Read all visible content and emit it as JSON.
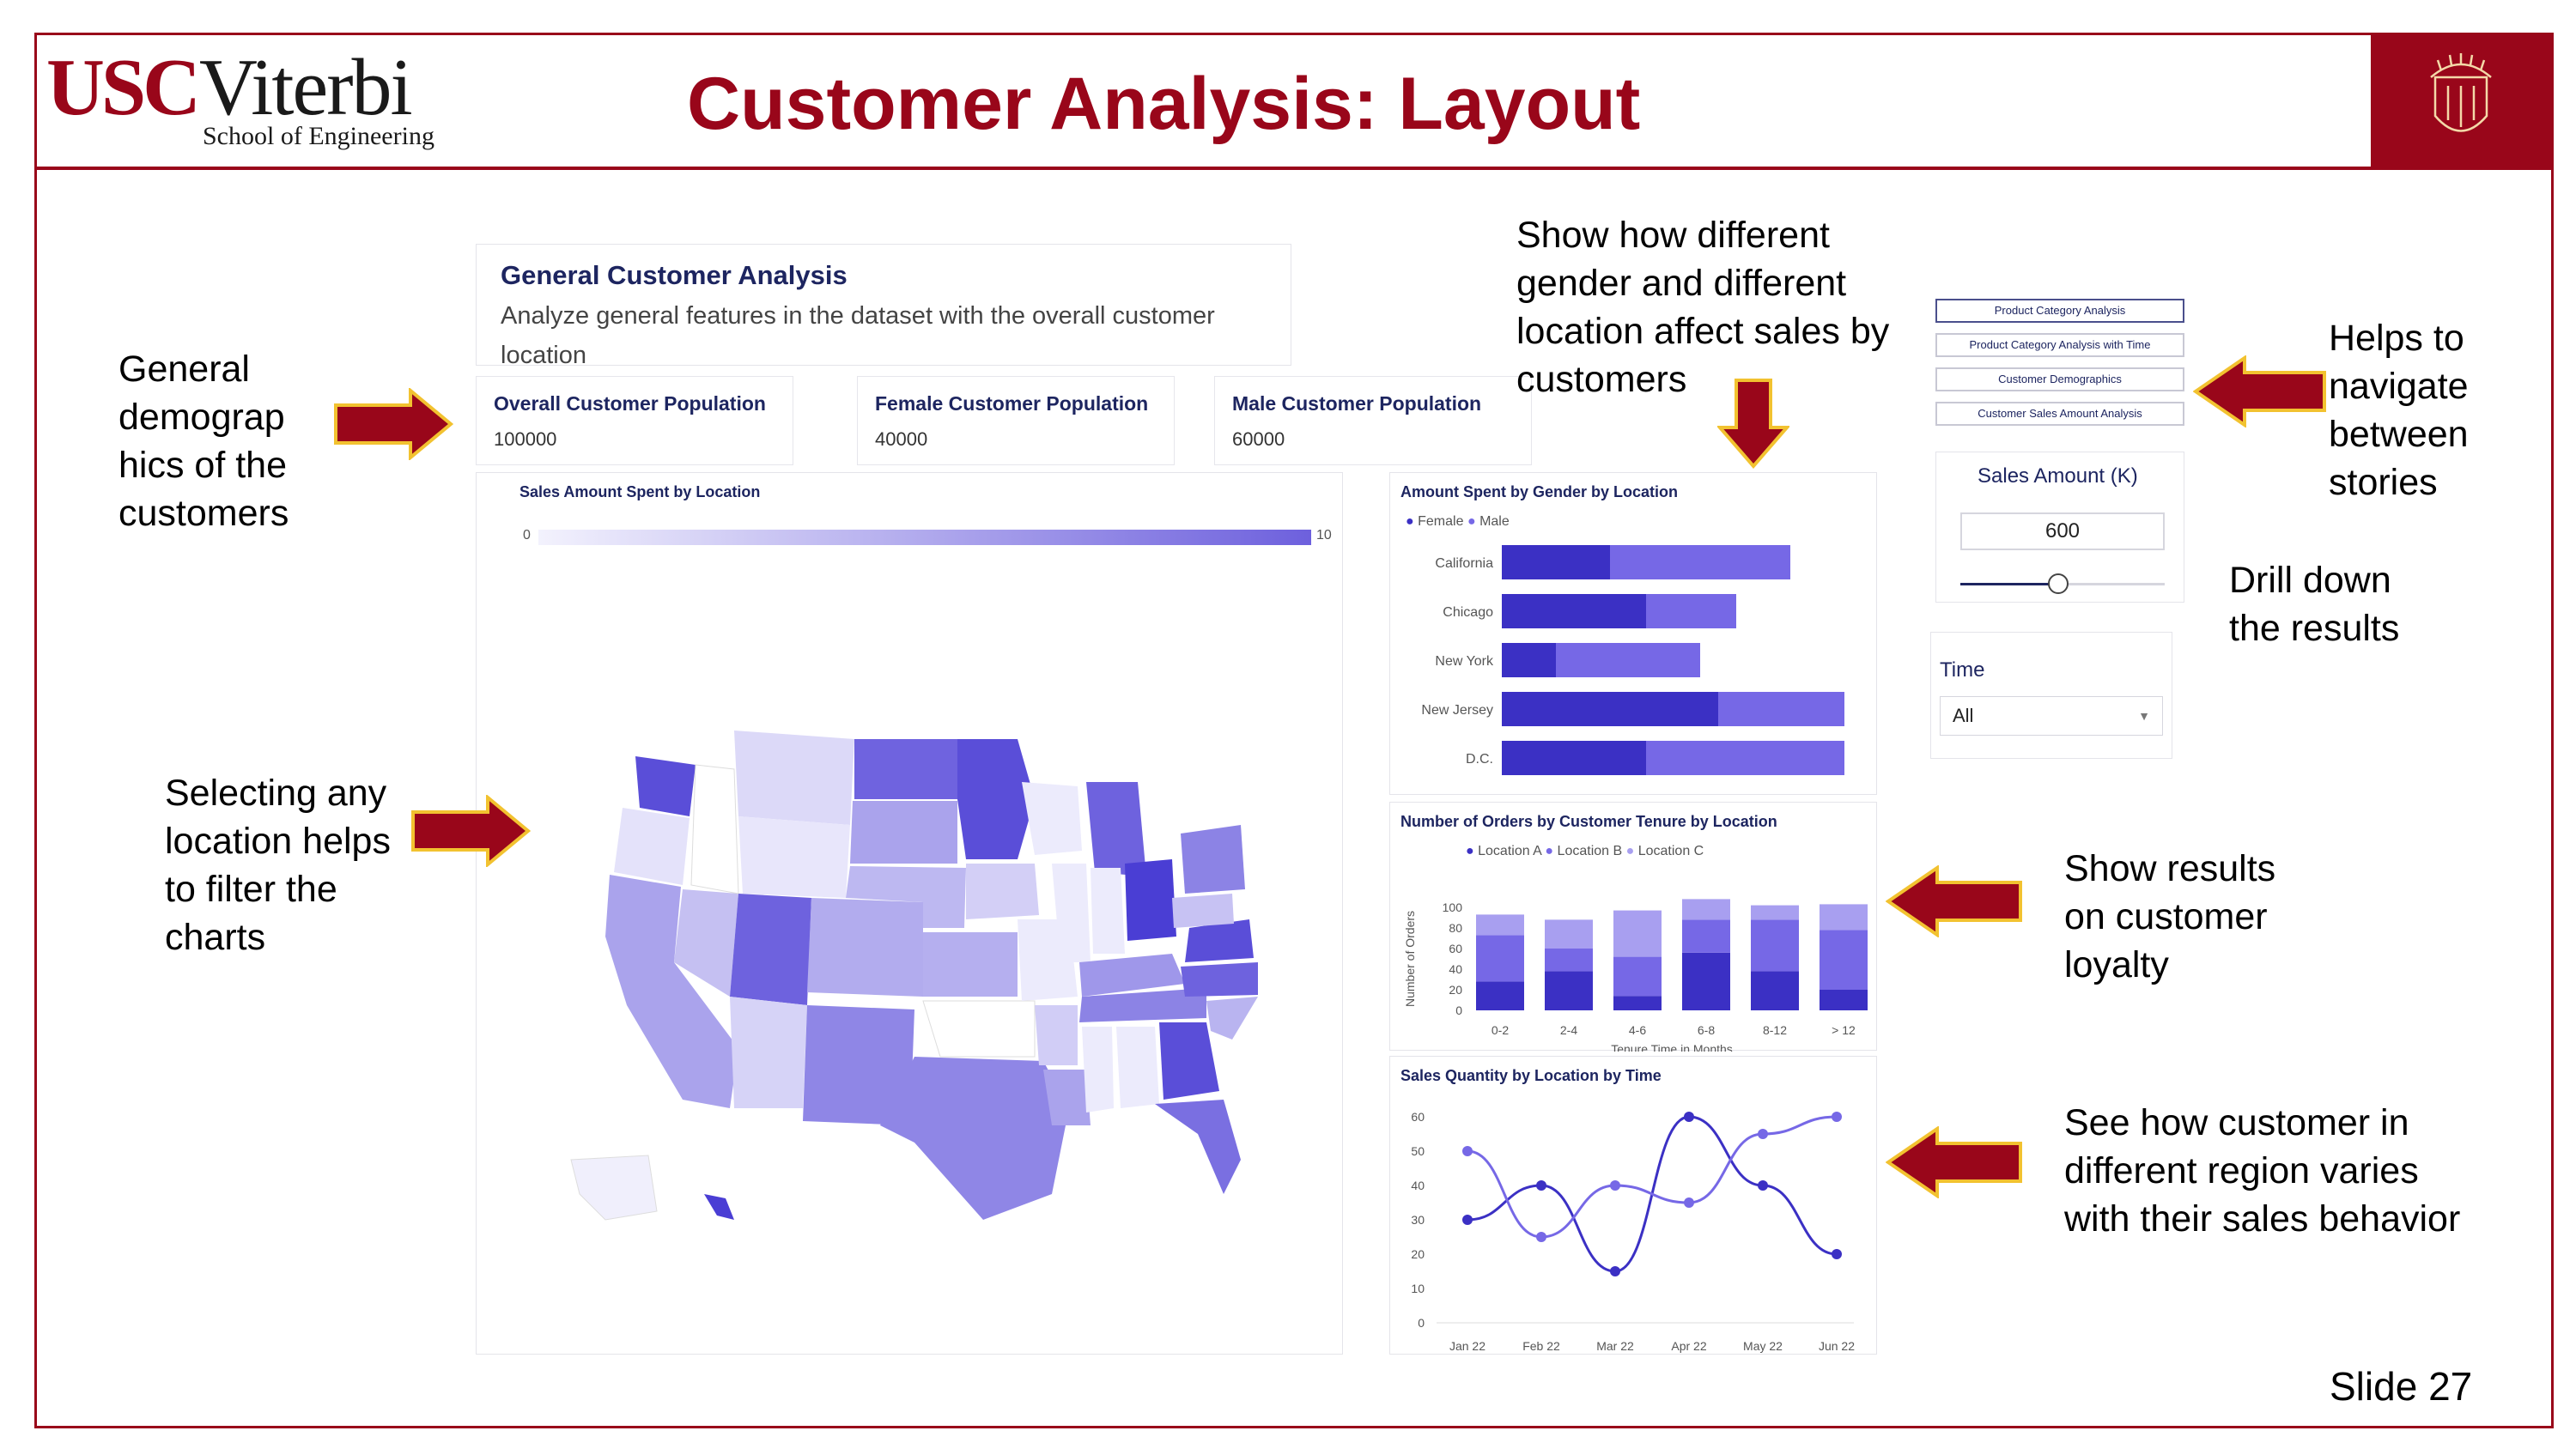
{
  "logo": {
    "usc": "USC",
    "viterbi": "Viterbi",
    "school": "School of Engineering"
  },
  "slide": {
    "title": "Customer Analysis: Layout",
    "number": "Slide 27"
  },
  "annotations": {
    "demographics": [
      "General",
      "demograp",
      "hics of the",
      "customers"
    ],
    "gender_location": [
      "Show how different",
      "gender and different",
      "location affect sales by",
      "customers"
    ],
    "navigate": [
      "Helps to",
      "navigate",
      "between",
      "stories"
    ],
    "drill": [
      "Drill down",
      "the results"
    ],
    "select_location": [
      "Selecting any",
      "location helps",
      "to filter the",
      "charts"
    ],
    "loyalty": [
      "Show results",
      "on customer",
      "loyalty"
    ],
    "region_varies": [
      "See how customer in",
      "different region varies",
      "with their sales behavior"
    ]
  },
  "dashboard": {
    "header": {
      "title": "General Customer Analysis",
      "description": "Analyze general features in the dataset with the overall customer location"
    },
    "kpis": [
      {
        "label": "Overall Customer Population",
        "value": "100000"
      },
      {
        "label": "Female Customer Population",
        "value": "40000"
      },
      {
        "label": "Male Customer Population",
        "value": "60000"
      }
    ],
    "map": {
      "title": "Sales Amount Spent by Location",
      "scale_min": "0",
      "scale_max": "10"
    },
    "story_nav": [
      "Product Category Analysis",
      "Product Category Analysis with Time",
      "Customer Demographics",
      "Customer Sales Amount Analysis"
    ],
    "filters": {
      "sales_label": "Sales Amount (K)",
      "sales_value": "600",
      "slider_fraction": 0.48,
      "time_label": "Time",
      "time_value": "All"
    }
  },
  "colors": {
    "brand": "#99061a",
    "navy": "#1d2560",
    "dark_series": "#3b30c4",
    "light_series": "#7668e6",
    "pale_series": "#a89ff0"
  },
  "chart_data": [
    {
      "type": "bar",
      "orientation": "horizontal",
      "stacked": true,
      "title": "Amount Spent by Gender by Location",
      "categories": [
        "California",
        "Chicago",
        "New York",
        "New Jersey",
        "D.C."
      ],
      "series": [
        {
          "name": "Female",
          "values": [
            3.0,
            4.0,
            1.5,
            6.0,
            4.0
          ]
        },
        {
          "name": "Male",
          "values": [
            5.0,
            2.5,
            4.0,
            3.5,
            5.5
          ]
        }
      ],
      "legend": "top-left"
    },
    {
      "type": "bar",
      "stacked": true,
      "title": "Number of Orders by Customer Tenure by Location",
      "xlabel": "Tenure Time in Months",
      "ylabel": "Number of Orders",
      "categories": [
        "0-2",
        "2-4",
        "4-6",
        "6-8",
        "8-12",
        "> 12"
      ],
      "series": [
        {
          "name": "Location A",
          "values": [
            28,
            38,
            14,
            56,
            38,
            20
          ]
        },
        {
          "name": "Location B",
          "values": [
            45,
            22,
            38,
            32,
            50,
            58
          ]
        },
        {
          "name": "Location C",
          "values": [
            20,
            28,
            45,
            20,
            14,
            25
          ]
        }
      ],
      "yticks": [
        "0",
        "20",
        "40",
        "60",
        "80",
        "100"
      ],
      "ylim": [
        0,
        100
      ],
      "legend": "top"
    },
    {
      "type": "line",
      "title": "Sales Quantity by Location by Time",
      "x": [
        "Jan 22",
        "Feb 22",
        "Mar 22",
        "Apr 22",
        "May 22",
        "Jun 22"
      ],
      "series": [
        {
          "values": [
            30,
            40,
            15,
            60,
            40,
            20
          ]
        },
        {
          "values": [
            50,
            25,
            40,
            35,
            55,
            60
          ]
        }
      ],
      "yticks": [
        "0",
        "10",
        "20",
        "30",
        "40",
        "50",
        "60"
      ],
      "ylim": [
        0,
        60
      ]
    }
  ]
}
